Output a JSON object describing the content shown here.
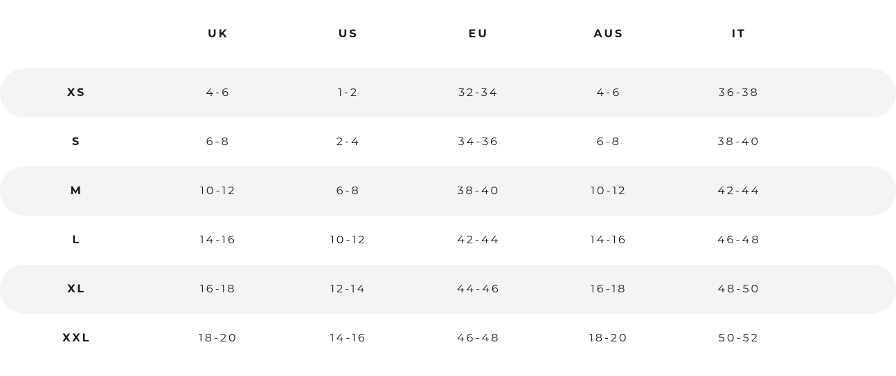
{
  "table": {
    "type": "table",
    "background_color": "#ffffff",
    "stripe_color": "#f4f4f4",
    "text_color": "#1a1a1a",
    "header_fontweight": 700,
    "label_fontweight": 700,
    "cell_fontweight": 400,
    "fontsize": 16,
    "letter_spacing": 3,
    "row_border_radius": 40,
    "columns": [
      "UK",
      "US",
      "EU",
      "AUS",
      "IT"
    ],
    "rows": [
      {
        "size": "XS",
        "values": [
          "4-6",
          "1-2",
          "32-34",
          "4-6",
          "36-38"
        ]
      },
      {
        "size": "S",
        "values": [
          "6-8",
          "2-4",
          "34-36",
          "6-8",
          "38-40"
        ]
      },
      {
        "size": "M",
        "values": [
          "10-12",
          "6-8",
          "38-40",
          "10-12",
          "42-44"
        ]
      },
      {
        "size": "L",
        "values": [
          "14-16",
          "10-12",
          "42-44",
          "14-16",
          "46-48"
        ]
      },
      {
        "size": "XL",
        "values": [
          "16-18",
          "12-14",
          "44-46",
          "16-18",
          "48-50"
        ]
      },
      {
        "size": "XXL",
        "values": [
          "18-20",
          "14-16",
          "46-48",
          "18-20",
          "50-52"
        ]
      }
    ]
  }
}
